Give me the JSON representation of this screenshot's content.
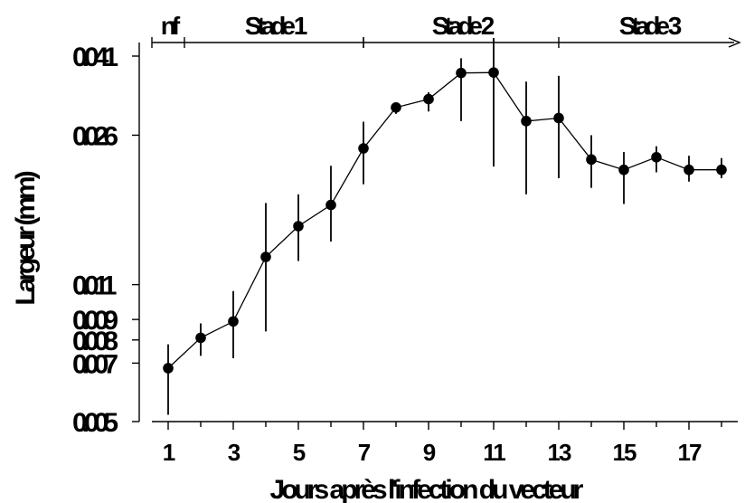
{
  "chart_data": {
    "type": "line",
    "title": "",
    "xlabel": "Jours après l'infection du vecteur",
    "ylabel": "Largeur (mm)",
    "x_ticks": [
      1,
      3,
      5,
      7,
      9,
      11,
      13,
      15,
      17
    ],
    "xlim": [
      0.5,
      18.5
    ],
    "y_ticks": [
      {
        "value": 0.005,
        "label": "0.005"
      },
      {
        "value": 0.007,
        "label": "0.007"
      },
      {
        "value": 0.008,
        "label": "0.008"
      },
      {
        "value": 0.009,
        "label": "0.009"
      },
      {
        "value": 0.011,
        "label": "0.011"
      },
      {
        "value": 0.026,
        "label": "0.026"
      },
      {
        "value": 0.041,
        "label": "0.041"
      }
    ],
    "y_scale": "log",
    "ylim": [
      0.005,
      0.041
    ],
    "grid": false,
    "stages": [
      {
        "label": "nf",
        "start": 0.5,
        "end": 1.5
      },
      {
        "label": "Stade 1",
        "start": 1.5,
        "end": 7
      },
      {
        "label": "Stade 2",
        "start": 7,
        "end": 13
      },
      {
        "label": "Stade 3",
        "start": 13,
        "end": 18.5
      }
    ],
    "series": [
      {
        "points": [
          {
            "x": 1,
            "y": 0.0068,
            "low": 0.0052,
            "high": 0.0078
          },
          {
            "x": 2,
            "y": 0.0081,
            "low": 0.0073,
            "high": 0.0088
          },
          {
            "x": 3,
            "y": 0.0089,
            "low": 0.0072,
            "high": 0.0106
          },
          {
            "x": 4,
            "y": 0.0129,
            "low": 0.0084,
            "high": 0.0176
          },
          {
            "x": 5,
            "y": 0.0154,
            "low": 0.0126,
            "high": 0.0185
          },
          {
            "x": 6,
            "y": 0.0174,
            "low": 0.0141,
            "high": 0.0218
          },
          {
            "x": 7,
            "y": 0.0241,
            "low": 0.0196,
            "high": 0.0281
          },
          {
            "x": 8,
            "y": 0.0305,
            "low": 0.0294,
            "high": 0.031
          },
          {
            "x": 9,
            "y": 0.032,
            "low": 0.0298,
            "high": 0.0333
          },
          {
            "x": 10,
            "y": 0.0372,
            "low": 0.0282,
            "high": 0.0405
          },
          {
            "x": 11,
            "y": 0.0373,
            "low": 0.0217,
            "high": 0.0455
          },
          {
            "x": 12,
            "y": 0.0282,
            "low": 0.0185,
            "high": 0.0354
          },
          {
            "x": 13,
            "y": 0.0287,
            "low": 0.0203,
            "high": 0.0366
          },
          {
            "x": 14,
            "y": 0.0226,
            "low": 0.0192,
            "high": 0.026
          },
          {
            "x": 15,
            "y": 0.0213,
            "low": 0.0175,
            "high": 0.0236
          },
          {
            "x": 16,
            "y": 0.0229,
            "low": 0.021,
            "high": 0.0244
          },
          {
            "x": 17,
            "y": 0.0213,
            "low": 0.0199,
            "high": 0.0231
          },
          {
            "x": 18,
            "y": 0.0213,
            "low": 0.0203,
            "high": 0.0228
          }
        ]
      }
    ]
  }
}
